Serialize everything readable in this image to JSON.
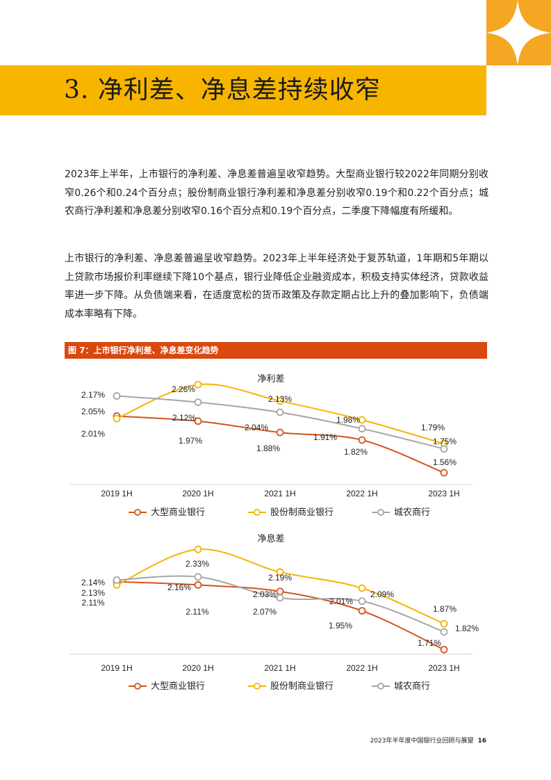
{
  "section_title": "3. 净利差、净息差持续收窄",
  "paragraph_1": "2023年上半年，上市银行的净利差、净息差普遍呈收窄趋势。大型商业银行较2022年同期分别收窄0.26个和0.24个百分点；股份制商业银行净利差和净息差分别收窄0.19个和0.22个百分点；城农商行净利差和净息差分别收窄0.16个百分点和0.19个百分点，二季度下降幅度有所缓和。",
  "paragraph_2": "上市银行的净利差、净息差普遍呈收窄趋势。2023年上半年经济处于复苏轨道，1年期和5年期以上贷款市场报价利率继续下降10个基点，银行业降低企业融资成本，积极支持实体经济，贷款收益率进一步下降。从负债端来看，在适度宽松的货币政策及存款定期占比上升的叠加影响下，负债端成本率略有下降。",
  "figure_title": "图 7：上市银行净利差、净息差变化趋势",
  "footer": {
    "text": "2023年半年度中国银行业回顾与展望",
    "page": "16"
  },
  "colors": {
    "band": "#f7b500",
    "corner": "#f5a623",
    "fig_header": "#d9480f",
    "large": "#d4541a",
    "joint": "#f4b400",
    "city": "#a6a6a6"
  },
  "chart_data": [
    {
      "type": "line",
      "title": "净利差",
      "categories": [
        "2019 1H",
        "2020 1H",
        "2021 1H",
        "2022 1H",
        "2023 1H"
      ],
      "ylim": [
        1.45,
        2.3
      ],
      "grid": false,
      "legend": "bottom",
      "series": [
        {
          "name": "大型商业银行",
          "values": [
            2.01,
            1.97,
            1.88,
            1.82,
            1.56
          ],
          "labels": [
            "2.01%",
            "1.97%",
            "1.88%",
            "1.82%",
            "1.56%"
          ]
        },
        {
          "name": "股份制商业银行",
          "values": [
            1.99,
            2.26,
            2.13,
            1.98,
            1.79
          ],
          "labels": [
            "",
            "2.26%",
            "2.13%",
            "1.98%",
            "1.79%"
          ]
        },
        {
          "name": "城农商行",
          "values": [
            2.17,
            2.12,
            2.04,
            1.91,
            1.75
          ],
          "labels": [
            "2.17%",
            "2.12%",
            "2.04%",
            "1.91%",
            "1.75%"
          ]
        }
      ],
      "extra_labels": [
        "2.05%"
      ]
    },
    {
      "type": "line",
      "title": "净息差",
      "categories": [
        "2019 1H",
        "2020 1H",
        "2021 1H",
        "2022 1H",
        "2023 1H"
      ],
      "ylim": [
        1.6,
        2.4
      ],
      "grid": false,
      "legend": "bottom",
      "series": [
        {
          "name": "大型商业银行",
          "values": [
            2.13,
            2.11,
            2.07,
            1.95,
            1.71
          ],
          "labels": [
            "2.13%",
            "2.11%",
            "2.07%",
            "1.95%",
            "1.71%"
          ]
        },
        {
          "name": "股份制商业银行",
          "values": [
            2.11,
            2.33,
            2.19,
            2.09,
            1.87
          ],
          "labels": [
            "2.11%",
            "2.33%",
            "2.19%",
            "2.09%",
            "1.87%"
          ]
        },
        {
          "name": "城农商行",
          "values": [
            2.14,
            2.16,
            2.03,
            2.01,
            1.82
          ],
          "labels": [
            "2.14%",
            "2.16%",
            "2.03%",
            "2.01%",
            "1.82%"
          ]
        }
      ]
    }
  ]
}
